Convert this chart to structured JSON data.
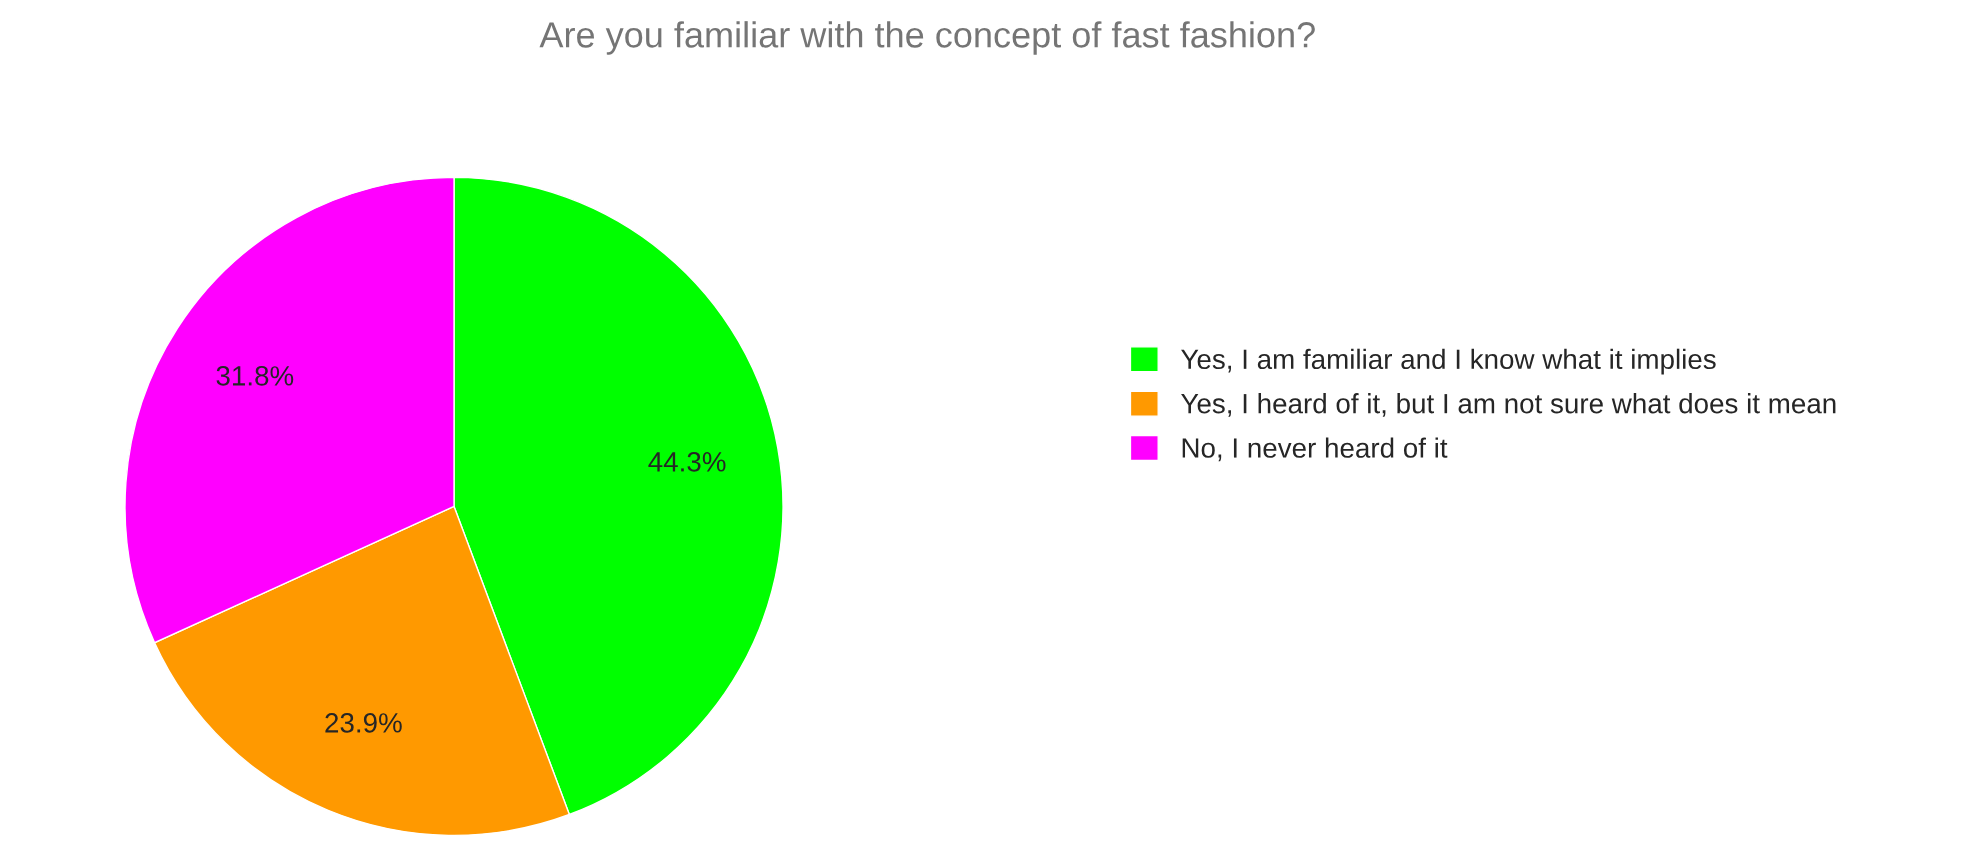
{
  "chart_data": {
    "type": "pie",
    "title": "Are you familiar with the concept of fast fashion?",
    "categories": [
      "Yes, I am familiar and I know what it implies",
      "Yes, I heard of it, but I am not sure what does it mean",
      "No, I never heard of it"
    ],
    "values": [
      44.3,
      23.9,
      31.8
    ],
    "colors": [
      "#00ff00",
      "#ff9900",
      "#ff00ff"
    ],
    "value_labels": [
      "44.3%",
      "23.9%",
      "31.8%"
    ],
    "legend": "right"
  }
}
